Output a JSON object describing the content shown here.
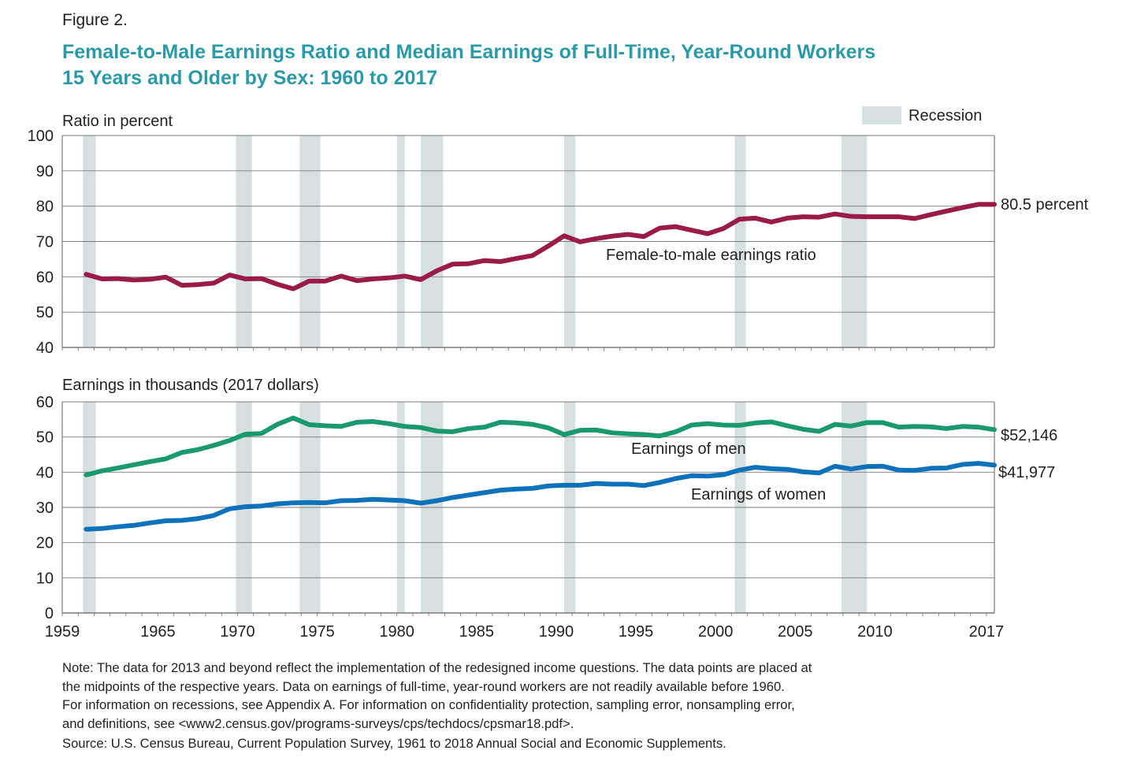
{
  "figure_label": "Figure 2.",
  "title_lines": [
    "Female-to-Male Earnings Ratio and Median Earnings of Full-Time, Year-Round Workers",
    "15 Years and Older by Sex: 1960 to 2017"
  ],
  "legend": {
    "recession_label": "Recession",
    "recession_color": "#d6e0e1"
  },
  "colors": {
    "ratio": "#9b1b48",
    "men": "#1a9a6c",
    "women": "#0e72bb",
    "grid": "#7a7a7a",
    "title": "#2a9aa8"
  },
  "note_lines": [
    "Note: The data for 2013 and beyond reflect the implementation of the redesigned income questions. The data points are placed at",
    "the midpoints of the respective years. Data on earnings of full-time, year-round workers are not readily available before 1960.",
    "For information on recessions, see Appendix A. For information on confidentiality protection, sampling error, nonsampling error,",
    "and definitions, see <www2.census.gov/programs-surveys/cps/techdocs/cpsmar18.pdf>."
  ],
  "source": "Source: U.S. Census Bureau, Current Population Survey, 1961 to 2018 Annual Social and Economic Supplements.",
  "chart_data": [
    {
      "type": "line",
      "ylabel": "Ratio in percent",
      "ylim": [
        40,
        100
      ],
      "yticks": [
        40,
        50,
        60,
        70,
        80,
        90,
        100
      ],
      "xlim": [
        1959,
        2017.5
      ],
      "grid": true,
      "recessions": [
        [
          1960.3,
          1961.1
        ],
        [
          1969.9,
          1970.9
        ],
        [
          1973.9,
          1975.2
        ],
        [
          1980.0,
          1980.5
        ],
        [
          1981.5,
          1982.9
        ],
        [
          1990.5,
          1991.2
        ],
        [
          2001.2,
          2001.9
        ],
        [
          2007.9,
          2009.5
        ]
      ],
      "end_label": "80.5 percent",
      "series": [
        {
          "name": "Female-to-male earnings ratio",
          "x": [
            1960,
            1961,
            1962,
            1963,
            1964,
            1965,
            1966,
            1967,
            1968,
            1969,
            1970,
            1971,
            1972,
            1973,
            1974,
            1975,
            1976,
            1977,
            1978,
            1979,
            1980,
            1981,
            1982,
            1983,
            1984,
            1985,
            1986,
            1987,
            1988,
            1989,
            1990,
            1991,
            1992,
            1993,
            1994,
            1995,
            1996,
            1997,
            1998,
            1999,
            2000,
            2001,
            2002,
            2003,
            2004,
            2005,
            2006,
            2007,
            2008,
            2009,
            2010,
            2011,
            2012,
            2013,
            2014,
            2015,
            2016,
            2017
          ],
          "values": [
            60.7,
            59.4,
            59.5,
            59.1,
            59.3,
            59.9,
            57.6,
            57.8,
            58.2,
            60.5,
            59.4,
            59.5,
            57.9,
            56.6,
            58.8,
            58.8,
            60.2,
            58.9,
            59.4,
            59.7,
            60.2,
            59.2,
            61.7,
            63.6,
            63.7,
            64.6,
            64.3,
            65.2,
            66.0,
            68.7,
            71.6,
            69.9,
            70.8,
            71.5,
            72.0,
            71.4,
            73.8,
            74.2,
            73.2,
            72.2,
            73.7,
            76.3,
            76.6,
            75.5,
            76.6,
            77.0,
            76.9,
            77.8,
            77.1,
            77.0,
            77.0,
            77.0,
            76.5,
            77.6,
            78.6,
            79.6,
            80.5,
            80.5
          ]
        }
      ]
    },
    {
      "type": "line",
      "ylabel": "Earnings in thousands (2017 dollars)",
      "ylim": [
        0,
        60
      ],
      "yticks": [
        0,
        10,
        20,
        30,
        40,
        50,
        60
      ],
      "xlim": [
        1959,
        2017.5
      ],
      "xticks": [
        1959,
        1965,
        1970,
        1975,
        1980,
        1985,
        1990,
        1995,
        2000,
        2005,
        2010,
        2017
      ],
      "grid": true,
      "recessions": [
        [
          1960.3,
          1961.1
        ],
        [
          1969.9,
          1970.9
        ],
        [
          1973.9,
          1975.2
        ],
        [
          1980.0,
          1980.5
        ],
        [
          1981.5,
          1982.9
        ],
        [
          1990.5,
          1991.2
        ],
        [
          2001.2,
          2001.9
        ],
        [
          2007.9,
          2009.5
        ]
      ],
      "series": [
        {
          "name": "Earnings of men",
          "end_label": "$52,146",
          "x": [
            1960,
            1961,
            1962,
            1963,
            1964,
            1965,
            1966,
            1967,
            1968,
            1969,
            1970,
            1971,
            1972,
            1973,
            1974,
            1975,
            1976,
            1977,
            1978,
            1979,
            1980,
            1981,
            1982,
            1983,
            1984,
            1985,
            1986,
            1987,
            1988,
            1989,
            1990,
            1991,
            1992,
            1993,
            1994,
            1995,
            1996,
            1997,
            1998,
            1999,
            2000,
            2001,
            2002,
            2003,
            2004,
            2005,
            2006,
            2007,
            2008,
            2009,
            2010,
            2011,
            2012,
            2013,
            2014,
            2015,
            2016,
            2017
          ],
          "values": [
            39.2,
            40.4,
            41.2,
            42.1,
            43.0,
            43.8,
            45.6,
            46.4,
            47.6,
            49.0,
            50.8,
            51.0,
            53.6,
            55.4,
            53.5,
            53.2,
            53.0,
            54.2,
            54.4,
            53.8,
            53.0,
            52.7,
            51.7,
            51.5,
            52.4,
            52.8,
            54.2,
            54.0,
            53.6,
            52.6,
            50.7,
            51.9,
            52.0,
            51.2,
            50.9,
            50.7,
            50.3,
            51.5,
            53.4,
            53.8,
            53.4,
            53.3,
            54.0,
            54.3,
            53.2,
            52.2,
            51.6,
            53.6,
            53.1,
            54.1,
            54.1,
            52.8,
            53.0,
            52.9,
            52.4,
            53.0,
            52.8,
            52.1
          ]
        },
        {
          "name": "Earnings of women",
          "end_label": "$41,977",
          "x": [
            1960,
            1961,
            1962,
            1963,
            1964,
            1965,
            1966,
            1967,
            1968,
            1969,
            1970,
            1971,
            1972,
            1973,
            1974,
            1975,
            1976,
            1977,
            1978,
            1979,
            1980,
            1981,
            1982,
            1983,
            1984,
            1985,
            1986,
            1987,
            1988,
            1989,
            1990,
            1991,
            1992,
            1993,
            1994,
            1995,
            1996,
            1997,
            1998,
            1999,
            2000,
            2001,
            2002,
            2003,
            2004,
            2005,
            2006,
            2007,
            2008,
            2009,
            2010,
            2011,
            2012,
            2013,
            2014,
            2015,
            2016,
            2017
          ],
          "values": [
            23.8,
            24.0,
            24.5,
            24.9,
            25.6,
            26.2,
            26.3,
            26.8,
            27.7,
            29.6,
            30.2,
            30.4,
            31.0,
            31.3,
            31.4,
            31.3,
            31.9,
            32.0,
            32.3,
            32.1,
            31.9,
            31.2,
            31.9,
            32.8,
            33.5,
            34.2,
            34.9,
            35.2,
            35.4,
            36.1,
            36.3,
            36.3,
            36.8,
            36.6,
            36.6,
            36.2,
            37.1,
            38.2,
            39.0,
            38.9,
            39.3,
            40.6,
            41.4,
            41.0,
            40.8,
            40.1,
            39.8,
            41.7,
            40.9,
            41.6,
            41.7,
            40.6,
            40.5,
            41.1,
            41.2,
            42.2,
            42.5,
            42.0
          ]
        }
      ]
    }
  ]
}
